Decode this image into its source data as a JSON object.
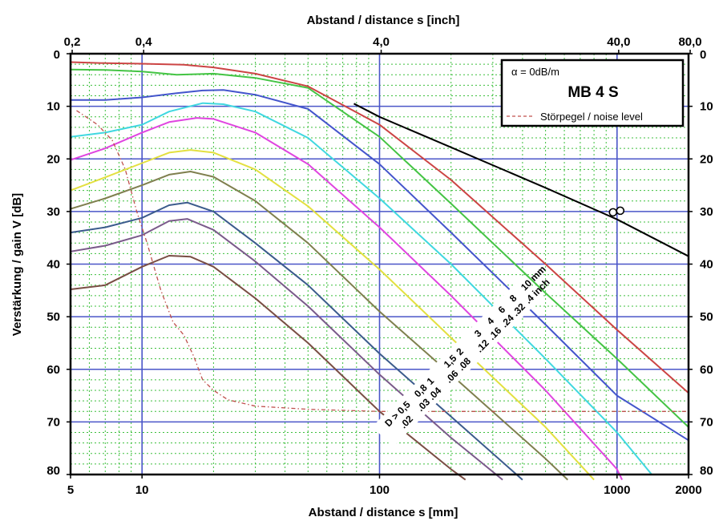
{
  "chart_data": {
    "type": "line",
    "title": "MB 4 S",
    "xlabel": "Abstand / distance s [mm]",
    "x2label": "Abstand / distance s [inch]",
    "ylabel": "Verstärkung / gain V [dB]",
    "xscale": "log",
    "xlim": [
      5,
      2000
    ],
    "ylim": [
      0,
      80
    ],
    "y_inverted": true,
    "x_ticks": [
      5,
      10,
      100,
      1000,
      2000
    ],
    "x_tick_labels": [
      "5",
      "10",
      "100",
      "1000",
      "2000"
    ],
    "top_ticks": [
      {
        "mm": 5.08,
        "label": "0,2"
      },
      {
        "mm": 10.16,
        "label": "0,4"
      },
      {
        "mm": 101.6,
        "label": "4,0"
      },
      {
        "mm": 1016,
        "label": "40,0"
      },
      {
        "mm": 2032,
        "label": "80,0"
      }
    ],
    "y_ticks": [
      0,
      10,
      20,
      30,
      40,
      50,
      60,
      70,
      80
    ],
    "y_tick_labels": [
      "0",
      "10",
      "20",
      "30",
      "40",
      "50",
      "60",
      "70",
      "80"
    ],
    "grid": true,
    "legend": {
      "position": "top-right",
      "attenuation": "α = 0dB/m",
      "entries": [
        {
          "label": "Störpegel / noise level",
          "color": "#c0504d",
          "style": "dashed"
        }
      ]
    },
    "series": [
      {
        "color": "#7a4e44",
        "points": [
          [
            5,
            44.8
          ],
          [
            7,
            44
          ],
          [
            10,
            40.5
          ],
          [
            13,
            38.4
          ],
          [
            16,
            38.6
          ],
          [
            20,
            40.5
          ],
          [
            30,
            46.5
          ],
          [
            50,
            55
          ],
          [
            100,
            68
          ],
          [
            200,
            79
          ],
          [
            230,
            81
          ]
        ]
      },
      {
        "color": "#7a5a8a",
        "points": [
          [
            5,
            37.6
          ],
          [
            7,
            36.5
          ],
          [
            10,
            34.5
          ],
          [
            13,
            31.8
          ],
          [
            15.5,
            31.4
          ],
          [
            20,
            33.5
          ],
          [
            30,
            39.5
          ],
          [
            50,
            48
          ],
          [
            100,
            61
          ],
          [
            200,
            73
          ],
          [
            330,
            81
          ]
        ]
      },
      {
        "color": "#3b5b8c",
        "points": [
          [
            5,
            34
          ],
          [
            7,
            33
          ],
          [
            10,
            31.2
          ],
          [
            13,
            28.8
          ],
          [
            15.5,
            28.3
          ],
          [
            20,
            30
          ],
          [
            30,
            36
          ],
          [
            50,
            44
          ],
          [
            100,
            57
          ],
          [
            200,
            69
          ],
          [
            400,
            81
          ]
        ]
      },
      {
        "color": "#7f7f4e",
        "points": [
          [
            5,
            29.5
          ],
          [
            7,
            27.5
          ],
          [
            10,
            25
          ],
          [
            13,
            23
          ],
          [
            16,
            22.4
          ],
          [
            20,
            23.4
          ],
          [
            30,
            28
          ],
          [
            50,
            36
          ],
          [
            100,
            49
          ],
          [
            200,
            61
          ],
          [
            500,
            77
          ],
          [
            620,
            81
          ]
        ]
      },
      {
        "color": "#e3e040",
        "points": [
          [
            5,
            26
          ],
          [
            7,
            23.5
          ],
          [
            10,
            20.8
          ],
          [
            13,
            18.8
          ],
          [
            16,
            18.3
          ],
          [
            20,
            18.8
          ],
          [
            30,
            22
          ],
          [
            50,
            29
          ],
          [
            100,
            41
          ],
          [
            200,
            54
          ],
          [
            500,
            71
          ],
          [
            800,
            81
          ]
        ]
      },
      {
        "color": "#e045e0",
        "points": [
          [
            5,
            20.2
          ],
          [
            7,
            18
          ],
          [
            10,
            15
          ],
          [
            13,
            13
          ],
          [
            17,
            12.2
          ],
          [
            20,
            12.4
          ],
          [
            30,
            15
          ],
          [
            50,
            21
          ],
          [
            100,
            33
          ],
          [
            200,
            46
          ],
          [
            500,
            64
          ],
          [
            1000,
            79
          ],
          [
            1050,
            81
          ]
        ]
      },
      {
        "color": "#40d8e0",
        "points": [
          [
            5,
            15.8
          ],
          [
            7,
            15
          ],
          [
            10,
            13.5
          ],
          [
            13,
            11
          ],
          [
            18,
            9.4
          ],
          [
            22,
            9.6
          ],
          [
            30,
            11
          ],
          [
            50,
            16
          ],
          [
            100,
            27.5
          ],
          [
            200,
            40
          ],
          [
            500,
            58
          ],
          [
            1000,
            72
          ],
          [
            1400,
            80
          ]
        ]
      },
      {
        "color": "#4455cc",
        "points": [
          [
            5,
            8.8
          ],
          [
            7,
            8.8
          ],
          [
            10,
            8.3
          ],
          [
            14,
            7.5
          ],
          [
            18,
            7
          ],
          [
            22,
            6.9
          ],
          [
            30,
            7.8
          ],
          [
            50,
            10.5
          ],
          [
            100,
            21
          ],
          [
            200,
            34
          ],
          [
            500,
            51.5
          ],
          [
            1000,
            65
          ],
          [
            2000,
            73.5
          ]
        ]
      },
      {
        "color": "#44c444",
        "points": [
          [
            5,
            3
          ],
          [
            7,
            3.1
          ],
          [
            10,
            3.4
          ],
          [
            14,
            4
          ],
          [
            20,
            3.8
          ],
          [
            30,
            4.6
          ],
          [
            50,
            6.5
          ],
          [
            100,
            15.8
          ],
          [
            200,
            28.5
          ],
          [
            500,
            45.5
          ],
          [
            1000,
            58
          ],
          [
            2000,
            71
          ]
        ]
      },
      {
        "color": "#cc4444",
        "points": [
          [
            5,
            1.6
          ],
          [
            7,
            1.8
          ],
          [
            10,
            1.9
          ],
          [
            15,
            2.1
          ],
          [
            20,
            2.6
          ],
          [
            30,
            3.8
          ],
          [
            50,
            6.2
          ],
          [
            100,
            13.5
          ],
          [
            200,
            24
          ],
          [
            500,
            40
          ],
          [
            1000,
            52.5
          ],
          [
            2000,
            64.5
          ]
        ]
      },
      {
        "color": "#000000",
        "points": [
          [
            78,
            9.5
          ],
          [
            100,
            12
          ],
          [
            200,
            17.8
          ],
          [
            500,
            25.5
          ],
          [
            1000,
            31.5
          ],
          [
            2000,
            38.5
          ]
        ]
      }
    ],
    "noise_level": [
      [
        5.3,
        10.8
      ],
      [
        6.5,
        13.5
      ],
      [
        7.5,
        16.5
      ],
      [
        8.5,
        22
      ],
      [
        9.5,
        30
      ],
      [
        10.5,
        36
      ],
      [
        12,
        45
      ],
      [
        13.5,
        51
      ],
      [
        15,
        53.5
      ],
      [
        16.5,
        57.5
      ],
      [
        18,
        62
      ],
      [
        20,
        64
      ],
      [
        23,
        65.8
      ],
      [
        30,
        67
      ],
      [
        50,
        67.6
      ],
      [
        100,
        68
      ],
      [
        2000,
        68
      ]
    ],
    "infinity_point": {
      "mm": 1000,
      "db": 30
    },
    "curve_labels": {
      "mm": [
        "D > 0,5",
        "0,8",
        "1",
        "1,5",
        "2",
        "3",
        "4",
        "6",
        "8",
        "10 mm"
      ],
      "inch": [
        ".02",
        ".03",
        ".04",
        ".06",
        ".08",
        ".12",
        ".16",
        ".24",
        ".32",
        ".4 inch"
      ]
    }
  }
}
